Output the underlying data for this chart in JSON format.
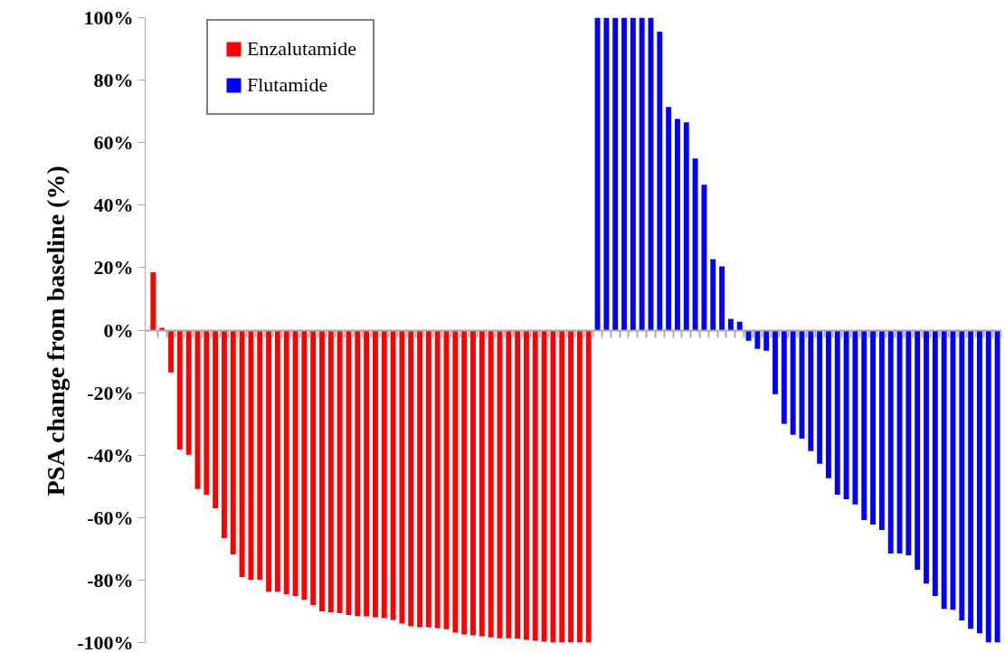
{
  "chart_data": {
    "type": "bar",
    "ylabel": "PSA change from baseline (%)",
    "categories": [
      null,
      null,
      null,
      null,
      null,
      null,
      null,
      null,
      null,
      null,
      null,
      null,
      null,
      null,
      null,
      null,
      null,
      null,
      null,
      null,
      null,
      null,
      null,
      null,
      null,
      null,
      null,
      null,
      null,
      null,
      null,
      null,
      null,
      null,
      null,
      null,
      null,
      null,
      null,
      null,
      null,
      null,
      null,
      null,
      null,
      null,
      null,
      null,
      null,
      null,
      null,
      null,
      null,
      null,
      null,
      null,
      null,
      null,
      null,
      null,
      null,
      null,
      null,
      null,
      null,
      null,
      null,
      null,
      null,
      null,
      null,
      null,
      null,
      null,
      null,
      null,
      null,
      null,
      null,
      null,
      null,
      null,
      null,
      null,
      null,
      null,
      null,
      null,
      null,
      null,
      null,
      null,
      null,
      null,
      null,
      null
    ],
    "series": [
      {
        "name": "Enzalutamide",
        "color": "#ff0000",
        "values": [
          18.5,
          0.7,
          -13.5,
          -38.2,
          -39.9,
          -50.9,
          -52.7,
          -57,
          -66.6,
          -71.8,
          -79,
          -79.9,
          -79.9,
          -83.7,
          -83.7,
          -84.5,
          -85.1,
          -86.3,
          -88,
          -90,
          -90.3,
          -90.6,
          -91.2,
          -91.5,
          -91.6,
          -91.9,
          -92.2,
          -92.8,
          -93.9,
          -94.8,
          -95.1,
          -95.1,
          -95.4,
          -95.7,
          -96.8,
          -97.4,
          -97.7,
          -98,
          -98.3,
          -98.6,
          -98.6,
          -98.8,
          -99.1,
          -99.4,
          -99.7,
          -100,
          -100,
          -100,
          -100,
          -100,
          null,
          null,
          null,
          null,
          null,
          null,
          null,
          null,
          null,
          null,
          null,
          null,
          null,
          null,
          null,
          null,
          null,
          null,
          null,
          null,
          null,
          null,
          null,
          null,
          null,
          null,
          null,
          null,
          null,
          null,
          null,
          null,
          null,
          null,
          null,
          null,
          null,
          null,
          null,
          null,
          null,
          null,
          null,
          null,
          null,
          null
        ]
      },
      {
        "name": "Flutamide",
        "color": "#0000ff",
        "values": [
          null,
          null,
          null,
          null,
          null,
          null,
          null,
          null,
          null,
          null,
          null,
          null,
          null,
          null,
          null,
          null,
          null,
          null,
          null,
          null,
          null,
          null,
          null,
          null,
          null,
          null,
          null,
          null,
          null,
          null,
          null,
          null,
          null,
          null,
          null,
          null,
          null,
          null,
          null,
          null,
          null,
          null,
          null,
          null,
          null,
          null,
          null,
          null,
          null,
          null,
          100,
          100,
          100,
          100,
          100,
          100,
          100,
          95.5,
          71.4,
          67.6,
          66.5,
          54.9,
          46.5,
          22.7,
          20.4,
          3.6,
          2.7,
          -3.4,
          -6,
          -6.6,
          -20.5,
          -30,
          -33.5,
          -34.7,
          -38.7,
          -42.8,
          -47.4,
          -52.7,
          -54.1,
          -55.8,
          -60.8,
          -62.2,
          -64,
          -71.5,
          -71.5,
          -72.1,
          -76.7,
          -81.1,
          -85.1,
          -89.2,
          -89.5,
          -92.9,
          -95.6,
          -97,
          -100,
          -100
        ]
      }
    ],
    "ylim": [
      -100,
      100
    ],
    "yticks": [
      {
        "value": -100,
        "label": "-100%"
      },
      {
        "value": -80,
        "label": "-80%"
      },
      {
        "value": -60,
        "label": "-60%"
      },
      {
        "value": -40,
        "label": "-40%"
      },
      {
        "value": -20,
        "label": "-20%"
      },
      {
        "value": 0,
        "label": "0%"
      },
      {
        "value": 20,
        "label": "20%"
      },
      {
        "value": 40,
        "label": "40%"
      },
      {
        "value": 60,
        "label": "60%"
      },
      {
        "value": 80,
        "label": "80%"
      },
      {
        "value": 100,
        "label": "100%"
      }
    ],
    "legend": "top left"
  }
}
